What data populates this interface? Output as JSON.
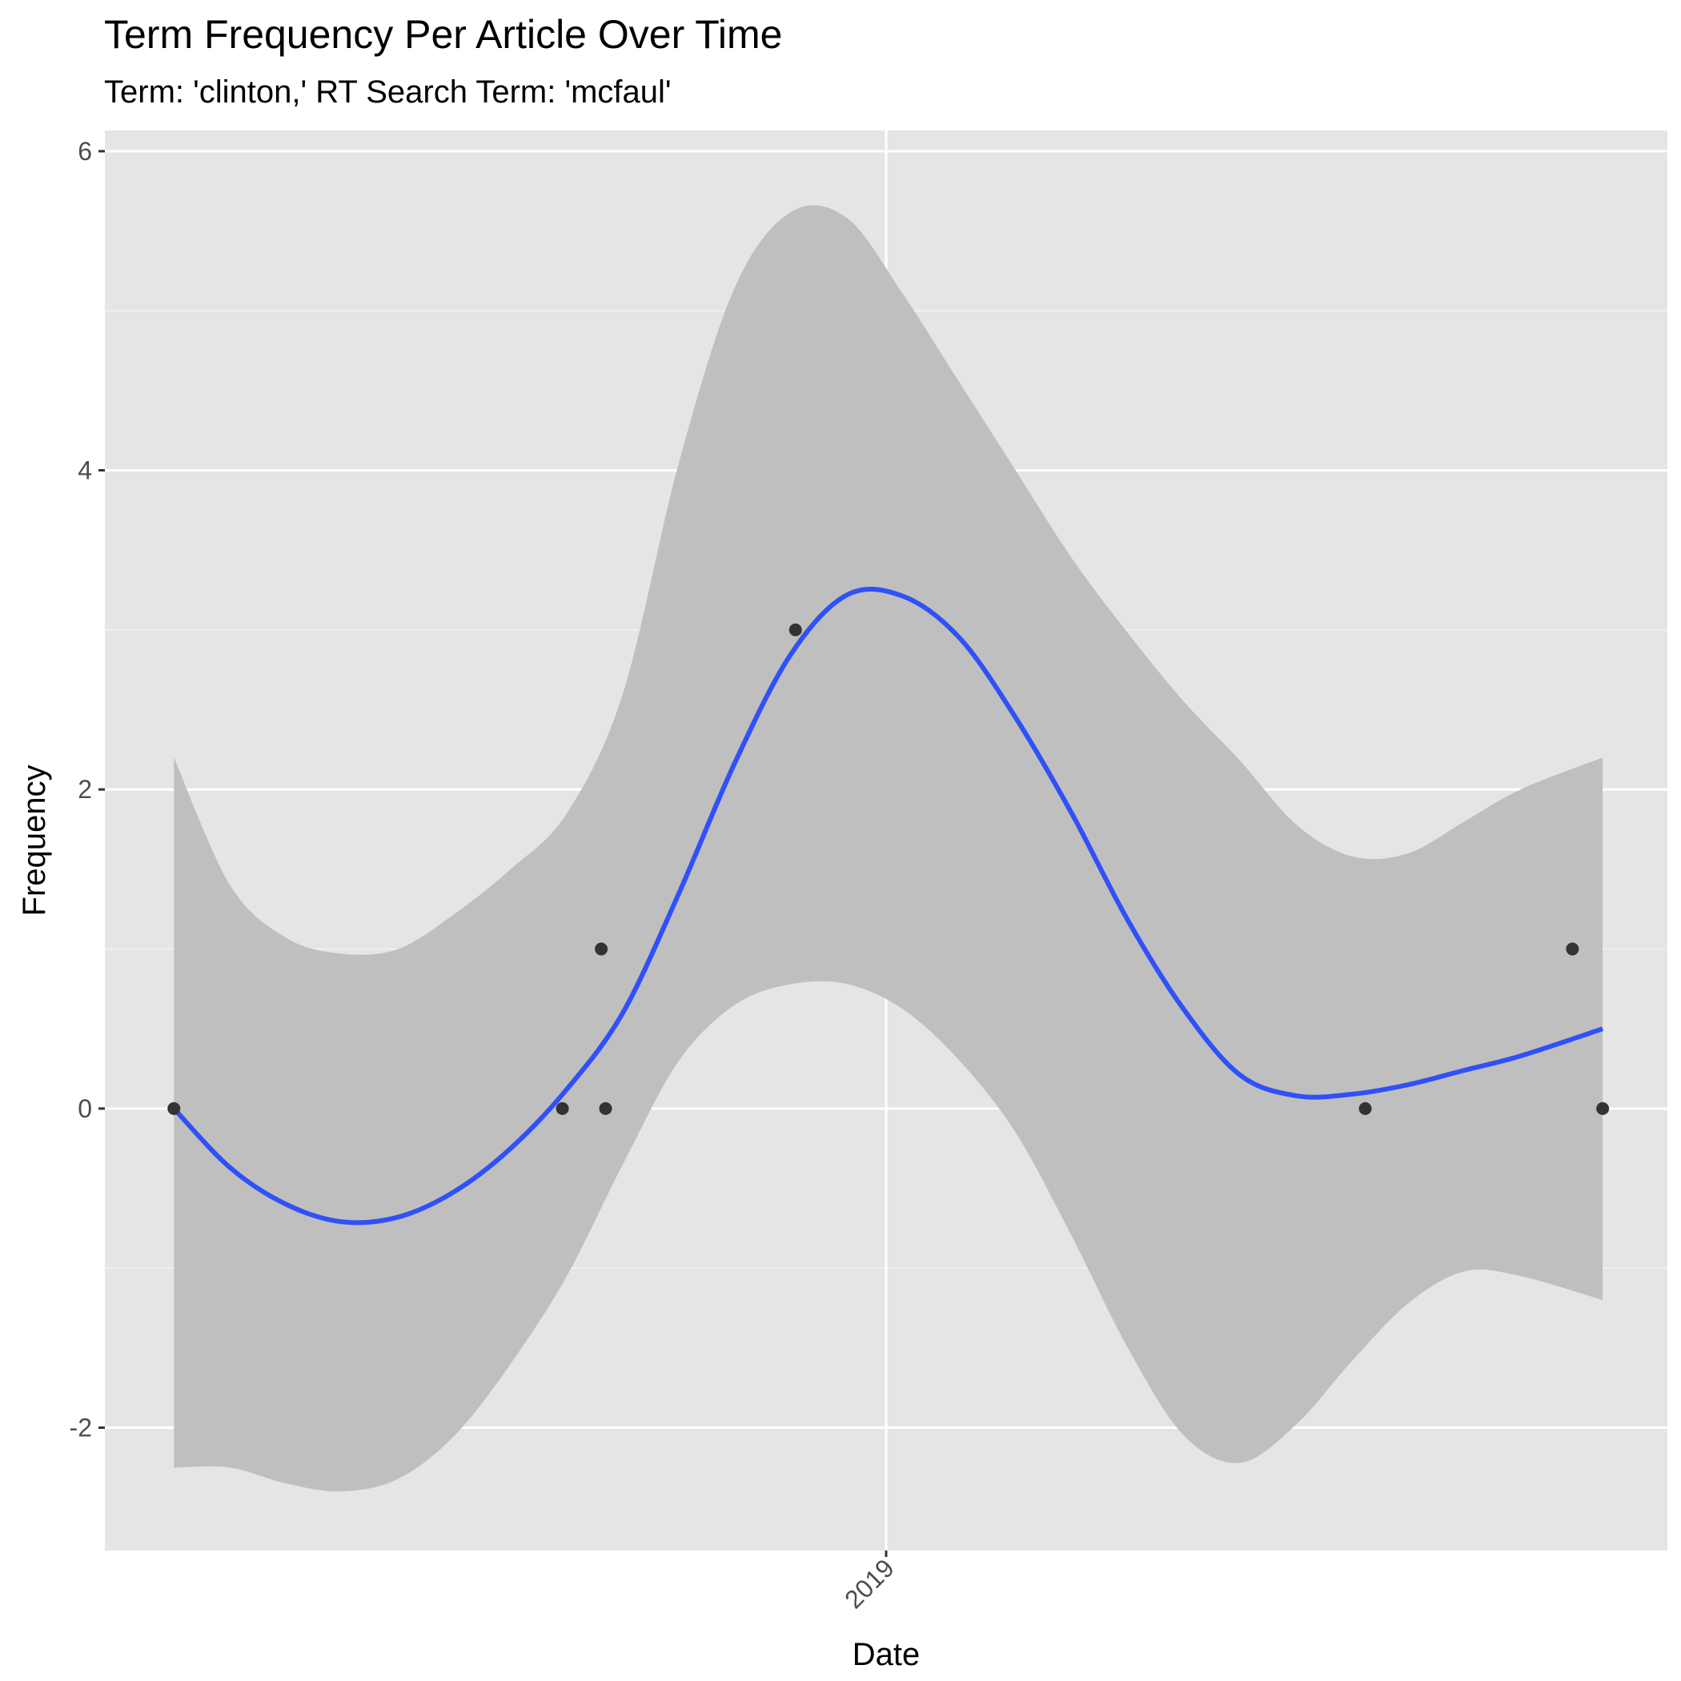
{
  "chart_data": {
    "type": "scatter",
    "title": "Term Frequency Per Article Over Time",
    "subtitle": "Term: 'clinton,' RT Search Term: 'mcfaul'",
    "xlabel": "Date",
    "ylabel": "Frequency",
    "x_scale": "date",
    "xlim": [
      "2018-07-04",
      "2019-07-01"
    ],
    "ylim": [
      -2.77,
      6.13
    ],
    "x_ticks": [
      {
        "value": "2019-01-01",
        "label": "2019"
      }
    ],
    "y_ticks": [
      {
        "value": -2,
        "label": "-2"
      },
      {
        "value": 0,
        "label": "0"
      },
      {
        "value": 2,
        "label": "2"
      },
      {
        "value": 4,
        "label": "4"
      },
      {
        "value": 6,
        "label": "6"
      }
    ],
    "grid": true,
    "colors": {
      "panel": "#e5e5e5",
      "grid": "#ffffff",
      "points": "#333333",
      "smooth_line": "#3050f8",
      "ribbon": "#bfbfbf"
    },
    "series": [
      {
        "kind": "points",
        "x": [
          "2018-07-20",
          "2018-10-18",
          "2018-10-27",
          "2018-10-28",
          "2018-12-11",
          "2019-04-22",
          "2019-06-09",
          "2019-06-16"
        ],
        "y": [
          0,
          0,
          1,
          0,
          3,
          0,
          1,
          0
        ]
      },
      {
        "kind": "smooth",
        "method": "loess",
        "x": [
          "2018-07-20",
          "2018-08-02",
          "2018-08-15",
          "2018-08-28",
          "2018-09-10",
          "2018-09-23",
          "2018-10-06",
          "2018-10-19",
          "2018-11-01",
          "2018-11-14",
          "2018-11-27",
          "2018-12-10",
          "2018-12-23",
          "2019-01-05",
          "2019-01-18",
          "2019-01-31",
          "2019-02-13",
          "2019-02-26",
          "2019-03-11",
          "2019-03-24",
          "2019-04-06",
          "2019-04-19",
          "2019-05-02",
          "2019-05-15",
          "2019-05-28",
          "2019-06-16"
        ],
        "y": [
          0,
          -0.37,
          -0.6,
          -0.71,
          -0.68,
          -0.52,
          -0.25,
          0.12,
          0.6,
          1.35,
          2.17,
          2.85,
          3.22,
          3.21,
          2.95,
          2.45,
          1.85,
          1.18,
          0.62,
          0.21,
          0.08,
          0.09,
          0.15,
          0.24,
          0.33,
          0.5
        ],
        "ci_lower": [
          -2.25,
          -2.25,
          -2.35,
          -2.4,
          -2.32,
          -2.05,
          -1.6,
          -1.05,
          -0.35,
          0.3,
          0.65,
          0.78,
          0.78,
          0.62,
          0.3,
          -0.15,
          -0.8,
          -1.5,
          -2.05,
          -2.22,
          -1.98,
          -1.58,
          -1.22,
          -1.02,
          -1.05,
          -1.2
        ],
        "ci_upper": [
          2.2,
          1.4,
          1.07,
          0.97,
          1.0,
          1.22,
          1.5,
          1.85,
          2.6,
          4.05,
          5.15,
          5.62,
          5.58,
          5.1,
          4.55,
          4.0,
          3.45,
          2.98,
          2.55,
          2.18,
          1.78,
          1.58,
          1.6,
          1.8,
          2.0,
          2.2
        ]
      }
    ]
  }
}
